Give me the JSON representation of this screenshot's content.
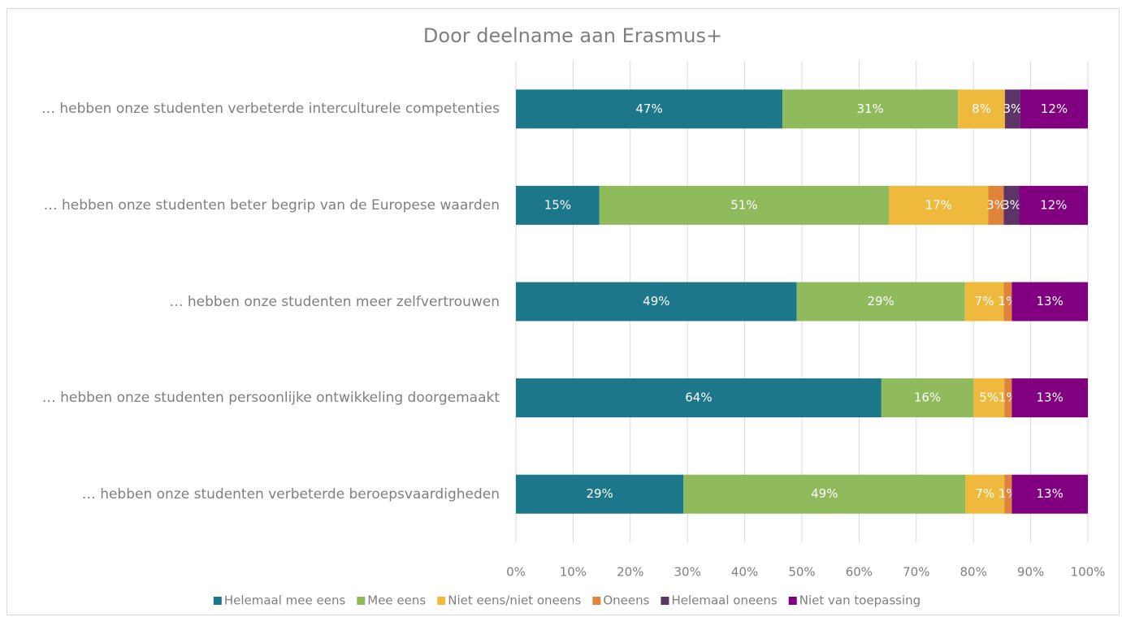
{
  "chart_data": {
    "type": "stacked-bar-horizontal",
    "title": "Door deelname aan Erasmus+",
    "categories": [
      "… hebben onze studenten verbeterde interculturele competenties",
      "… hebben onze studenten beter begrip van de Europese waarden",
      "… hebben onze studenten meer zelfvertrouwen",
      "… hebben onze studenten persoonlijke ontwikkeling doorgemaakt",
      "… hebben onze studenten verbeterde beroepsvaardigheden"
    ],
    "series": [
      {
        "name": "Helemaal mee eens",
        "color": "#1b7789",
        "values": [
          46.6,
          14.6,
          49.1,
          63.9,
          29.3
        ],
        "value_labels": [
          "47%",
          "15%",
          "49%",
          "64%",
          "29%"
        ]
      },
      {
        "name": "Mee eens",
        "color": "#8fbb5c",
        "values": [
          30.7,
          50.6,
          29.4,
          16.1,
          49.3
        ],
        "value_labels": [
          "31%",
          "51%",
          "29%",
          "16%",
          "49%"
        ]
      },
      {
        "name": "Niet eens/niet oneens",
        "color": "#efb93e",
        "values": [
          8.2,
          17.4,
          6.8,
          5.4,
          6.8
        ],
        "value_labels": [
          "8%",
          "17%",
          "7%",
          "5%",
          "7%"
        ]
      },
      {
        "name": "Oneens",
        "color": "#e0843c",
        "values": [
          0,
          2.7,
          1.4,
          1.3,
          1.3
        ],
        "value_labels": [
          null,
          "3%",
          "1%",
          "1%",
          "1%"
        ]
      },
      {
        "name": "Helemaal oneens",
        "color": "#5c3467",
        "values": [
          2.7,
          2.7,
          0,
          0,
          0
        ],
        "value_labels": [
          "3%",
          "3%",
          null,
          null,
          null
        ]
      },
      {
        "name": "Niet van toepassing",
        "color": "#800080",
        "values": [
          11.8,
          12.0,
          13.3,
          13.3,
          13.3
        ],
        "value_labels": [
          "12%",
          "12%",
          "13%",
          "13%",
          "13%"
        ]
      }
    ],
    "xlim": [
      0,
      100
    ],
    "xticks": [
      {
        "value": 0,
        "label": "0%"
      },
      {
        "value": 10,
        "label": "10%"
      },
      {
        "value": 20,
        "label": "20%"
      },
      {
        "value": 30,
        "label": "30%"
      },
      {
        "value": 40,
        "label": "40%"
      },
      {
        "value": 50,
        "label": "50%"
      },
      {
        "value": 60,
        "label": "60%"
      },
      {
        "value": 70,
        "label": "70%"
      },
      {
        "value": 80,
        "label": "80%"
      },
      {
        "value": 90,
        "label": "90%"
      },
      {
        "value": 100,
        "label": "100%"
      }
    ],
    "grid": true,
    "legend": "bottom"
  }
}
